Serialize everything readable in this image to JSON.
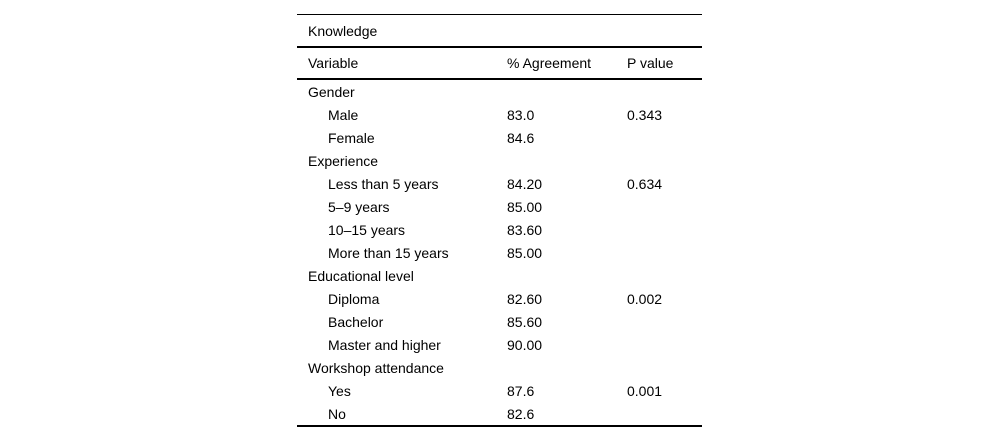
{
  "table": {
    "spanner": "Knowledge",
    "columns": {
      "variable": "Variable",
      "agreement": "% Agreement",
      "pvalue": "P value"
    },
    "rows": [
      {
        "label": "Gender",
        "agreement": "",
        "pvalue": ""
      },
      {
        "label": "Male",
        "agreement": "83.0",
        "pvalue": "0.343"
      },
      {
        "label": "Female",
        "agreement": "84.6",
        "pvalue": ""
      },
      {
        "label": "Experience",
        "agreement": "",
        "pvalue": ""
      },
      {
        "label": "Less than 5 years",
        "agreement": "84.20",
        "pvalue": "0.634"
      },
      {
        "label": "5–9 years",
        "agreement": "85.00",
        "pvalue": ""
      },
      {
        "label": "10–15 years",
        "agreement": "83.60",
        "pvalue": ""
      },
      {
        "label": "More than 15 years",
        "agreement": "85.00",
        "pvalue": ""
      },
      {
        "label": "Educational level",
        "agreement": "",
        "pvalue": ""
      },
      {
        "label": "Diploma",
        "agreement": "82.60",
        "pvalue": "0.002"
      },
      {
        "label": "Bachelor",
        "agreement": "85.60",
        "pvalue": ""
      },
      {
        "label": "Master and higher",
        "agreement": "90.00",
        "pvalue": ""
      },
      {
        "label": "Workshop attendance",
        "agreement": "",
        "pvalue": ""
      },
      {
        "label": "Yes",
        "agreement": "87.6",
        "pvalue": "0.001"
      },
      {
        "label": "No",
        "agreement": "82.6",
        "pvalue": ""
      }
    ]
  }
}
